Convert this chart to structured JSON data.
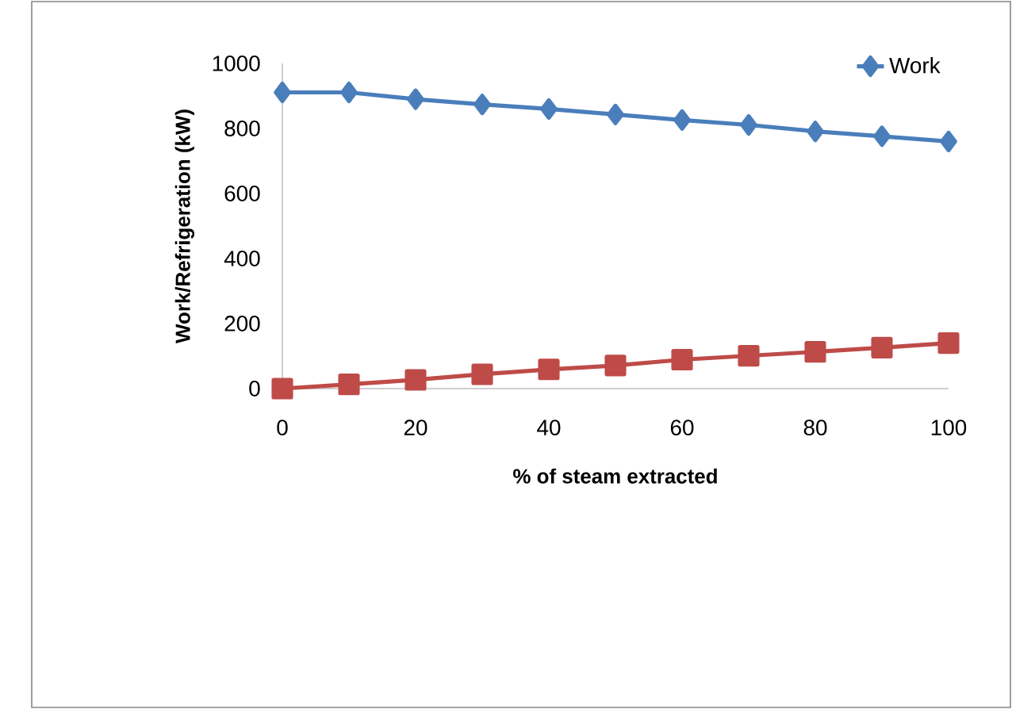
{
  "chart_data": {
    "type": "line",
    "xlabel": "% of steam extracted",
    "ylabel": "Work/Refrigeration (kW)",
    "x": [
      0,
      10,
      20,
      30,
      40,
      50,
      60,
      70,
      80,
      90,
      100
    ],
    "series": [
      {
        "name": "Work",
        "color": "#4a7ebb",
        "marker": "diamond",
        "values": [
          911,
          911,
          890,
          874,
          860,
          843,
          826,
          811,
          791,
          776,
          760
        ]
      },
      {
        "color": "#be4b48",
        "marker": "square",
        "values": [
          0,
          13,
          27,
          44,
          59,
          71,
          89,
          101,
          113,
          126,
          140
        ]
      }
    ],
    "xlim": [
      0,
      100
    ],
    "ylim": [
      0,
      1000
    ],
    "xticks": [
      0,
      20,
      40,
      60,
      80,
      100
    ],
    "yticks": [
      0,
      200,
      400,
      600,
      800,
      1000
    ],
    "grid": false,
    "legend": "top right",
    "line_style": "solid"
  }
}
